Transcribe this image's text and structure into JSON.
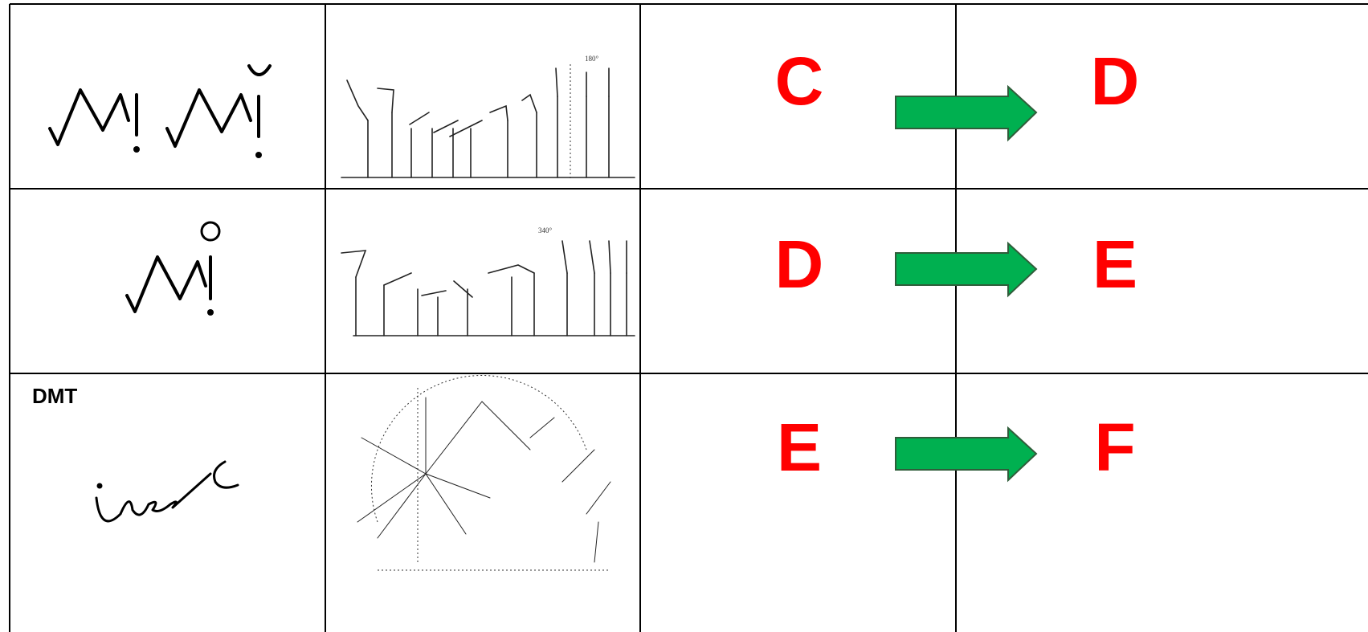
{
  "table": {
    "rows": [
      {
        "from": "C",
        "to": "D",
        "figure_note": "180°"
      },
      {
        "from": "D",
        "to": "E",
        "figure_note": "340°"
      },
      {
        "label": "DMT",
        "from": "E",
        "to": "F"
      }
    ]
  }
}
